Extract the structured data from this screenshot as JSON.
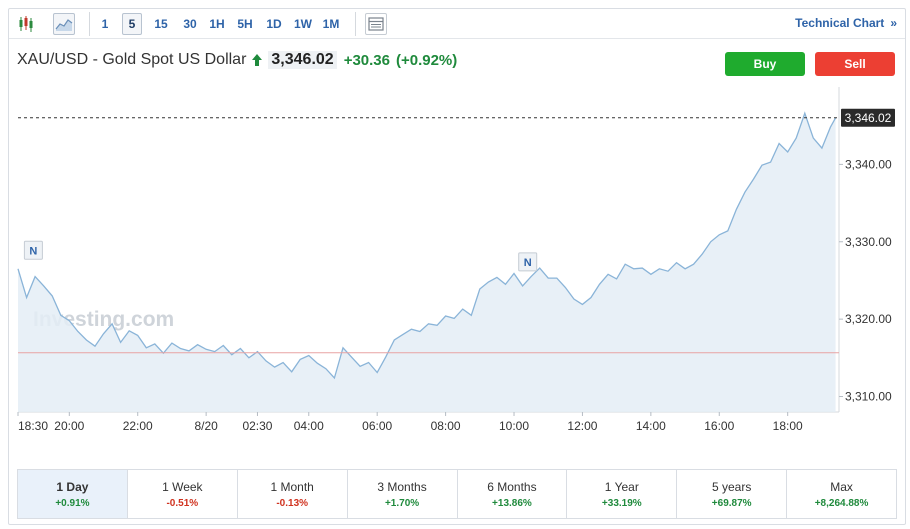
{
  "toolbar": {
    "intervals": [
      {
        "label": "1",
        "active": false
      },
      {
        "label": "5",
        "active": true
      },
      {
        "label": "15",
        "active": false
      },
      {
        "label": "30",
        "active": false
      },
      {
        "label": "1H",
        "active": false
      },
      {
        "label": "5H",
        "active": false
      },
      {
        "label": "1D",
        "active": false
      },
      {
        "label": "1W",
        "active": false
      },
      {
        "label": "1M",
        "active": false
      }
    ],
    "technical_chart_label": "Technical Chart",
    "technical_chart_chevron": "»"
  },
  "header": {
    "instrument": "XAU/USD - Gold Spot US Dollar",
    "last_price": "3,346.02",
    "change": "+30.36",
    "change_pct": "(+0.92%)",
    "direction": "up"
  },
  "trade": {
    "buy_label": "Buy",
    "sell_label": "Sell"
  },
  "chart_data": {
    "type": "area",
    "title": "",
    "xlabel": "",
    "ylabel": "",
    "x_tick_labels": [
      "18:30",
      "20:00",
      "22:00",
      "8/20",
      "02:30",
      "04:00",
      "06:00",
      "08:00",
      "10:00",
      "12:00",
      "14:00",
      "16:00",
      "18:00"
    ],
    "y_tick_labels": [
      "3,310.00",
      "3,320.00",
      "3,330.00",
      "3,340.00"
    ],
    "ylim": [
      3308,
      3350
    ],
    "last_price_label": "3,346.02",
    "last_price_value": 3346.02,
    "previous_close_value": 3315.66,
    "news_markers": [
      {
        "label": "N",
        "time": "18:30"
      },
      {
        "label": "N",
        "time": "09:20"
      }
    ],
    "watermark": "Investing.com",
    "x_hours": [
      0,
      0.25,
      0.5,
      0.75,
      1.0,
      1.25,
      1.5,
      1.75,
      2.0,
      2.25,
      2.5,
      2.75,
      3.0,
      3.25,
      3.5,
      3.75,
      4.0,
      4.25,
      4.5,
      4.75,
      5.0,
      5.25,
      5.5,
      5.75,
      6.0,
      6.25,
      6.5,
      6.75,
      7.0,
      7.25,
      7.5,
      7.75,
      8.0,
      8.25,
      8.5,
      8.75,
      9.0,
      9.25,
      9.5,
      9.75,
      10.0,
      10.25,
      10.5,
      10.75,
      11.0,
      11.25,
      11.5,
      11.75,
      12.0,
      12.25,
      12.5,
      12.75,
      13.0,
      13.25,
      13.5,
      13.75,
      14.0,
      14.25,
      14.5,
      14.75,
      15.0,
      15.25,
      15.5,
      15.75,
      16.0,
      16.25,
      16.5,
      16.75,
      17.0,
      17.25,
      17.5,
      17.75,
      18.0,
      18.25,
      18.5,
      18.75,
      19.0,
      19.25,
      19.5,
      19.75,
      20.0,
      20.25,
      20.5,
      20.75,
      21.0,
      21.25,
      21.5,
      21.75,
      22.0,
      22.25,
      22.5,
      22.75,
      23.0,
      23.25,
      23.5,
      23.75,
      23.9
    ],
    "values": [
      3326.5,
      3322.8,
      3325.5,
      3324.3,
      3323.0,
      3320.5,
      3319.8,
      3318.4,
      3317.3,
      3316.5,
      3318.1,
      3319.4,
      3317.0,
      3318.5,
      3317.9,
      3316.3,
      3316.8,
      3315.6,
      3316.9,
      3316.2,
      3315.9,
      3316.7,
      3316.1,
      3315.8,
      3316.6,
      3315.4,
      3316.2,
      3315.0,
      3315.8,
      3314.6,
      3313.8,
      3314.4,
      3313.2,
      3314.8,
      3315.3,
      3314.3,
      3313.6,
      3312.4,
      3316.3,
      3315.1,
      3313.9,
      3314.4,
      3313.1,
      3315.1,
      3317.3,
      3318.0,
      3318.7,
      3318.4,
      3319.4,
      3319.2,
      3320.4,
      3320.1,
      3321.3,
      3320.5,
      3323.9,
      3324.8,
      3325.4,
      3324.5,
      3325.9,
      3324.3,
      3325.5,
      3326.6,
      3325.3,
      3325.3,
      3324.1,
      3322.6,
      3321.9,
      3322.8,
      3324.5,
      3325.8,
      3325.2,
      3327.1,
      3326.5,
      3326.6,
      3325.8,
      3326.5,
      3326.2,
      3327.3,
      3326.5,
      3327.1,
      3328.4,
      3330.0,
      3330.9,
      3331.4,
      3334.2,
      3336.4,
      3338.1,
      3339.9,
      3340.3,
      3342.7,
      3341.6,
      3343.4,
      3346.6,
      3343.4,
      3342.1,
      3344.8,
      3346.02
    ]
  },
  "performance": [
    {
      "label": "1 Day",
      "value": "+0.91%",
      "sign": "pos",
      "active": true
    },
    {
      "label": "1 Week",
      "value": "-0.51%",
      "sign": "neg",
      "active": false
    },
    {
      "label": "1 Month",
      "value": "-0.13%",
      "sign": "neg",
      "active": false
    },
    {
      "label": "3 Months",
      "value": "+1.70%",
      "sign": "pos",
      "active": false
    },
    {
      "label": "6 Months",
      "value": "+13.86%",
      "sign": "pos",
      "active": false
    },
    {
      "label": "1 Year",
      "value": "+33.19%",
      "sign": "pos",
      "active": false
    },
    {
      "label": "5 years",
      "value": "+69.87%",
      "sign": "pos",
      "active": false
    },
    {
      "label": "Max",
      "value": "+8,264.88%",
      "sign": "pos",
      "active": false
    }
  ],
  "colors": {
    "line": "#8ab4d8",
    "area": "#e4edf6",
    "prev_close": "#e8a3a3",
    "last_price_bg": "#2a2a2a",
    "positive": "#1f8a3c",
    "negative": "#d0321f",
    "accent": "#2e63a8",
    "buy": "#1fab2e",
    "sell": "#ec3f33"
  },
  "icons": [
    "candlestick-icon",
    "area-chart-icon",
    "layout-icon",
    "up-arrow-icon"
  ]
}
